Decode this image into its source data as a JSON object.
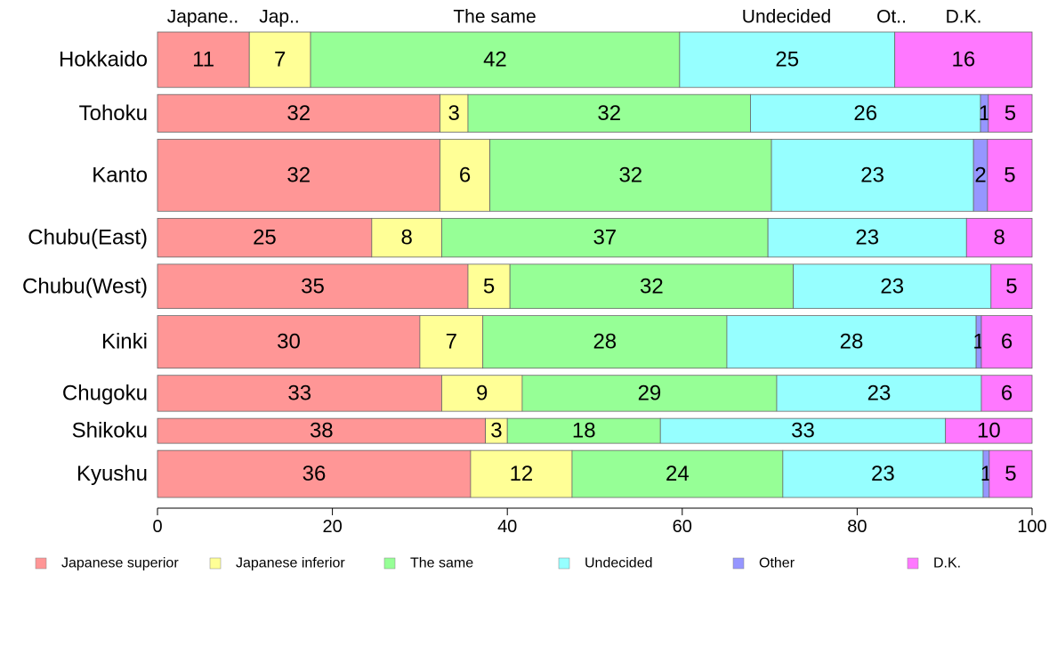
{
  "chart_data": {
    "type": "bar",
    "orientation": "horizontal",
    "stacked": true,
    "title": "",
    "xlabel": "",
    "ylabel": "",
    "xlim": [
      0,
      100
    ],
    "xticks": [
      0,
      20,
      40,
      60,
      80,
      100
    ],
    "grid": false,
    "legend": "bottom",
    "categories": [
      "Hokkaido",
      "Tohoku",
      "Kanto",
      "Chubu(East)",
      "Chubu(West)",
      "Kinki",
      "Chugoku",
      "Shikoku",
      "Kyushu"
    ],
    "category_weights": [
      1.0,
      0.68,
      1.3,
      0.7,
      0.8,
      0.95,
      0.65,
      0.45,
      0.85
    ],
    "top_labels": [
      "Japane..",
      "Jap..",
      "The same",
      "Undecided",
      "Ot..",
      "D.K."
    ],
    "series": [
      {
        "name": "Japanese superior",
        "color": "#ff9696",
        "values": [
          10.5,
          32.3,
          32.3,
          24.5,
          35.5,
          30.0,
          32.5,
          37.5,
          35.8
        ],
        "labels": [
          "11",
          "32",
          "32",
          "25",
          "35",
          "30",
          "33",
          "38",
          "36"
        ]
      },
      {
        "name": "Japanese inferior",
        "color": "#ffff96",
        "values": [
          7.0,
          3.2,
          5.7,
          8.0,
          4.8,
          7.2,
          9.2,
          2.5,
          11.6
        ],
        "labels": [
          "7",
          "3",
          "6",
          "8",
          "5",
          "7",
          "9",
          "3",
          "12"
        ]
      },
      {
        "name": "The same",
        "color": "#96ff96",
        "values": [
          42.2,
          32.3,
          32.2,
          37.3,
          32.4,
          27.9,
          29.1,
          17.5,
          24.1
        ],
        "labels": [
          "42",
          "32",
          "32",
          "37",
          "32",
          "28",
          "29",
          "18",
          "24"
        ]
      },
      {
        "name": "Undecided",
        "color": "#96ffff",
        "values": [
          24.6,
          26.3,
          23.1,
          22.7,
          22.6,
          28.5,
          23.4,
          32.6,
          22.9
        ],
        "labels": [
          "25",
          "26",
          "23",
          "23",
          "23",
          "28",
          "23",
          "33",
          "23"
        ]
      },
      {
        "name": "Other",
        "color": "#9696ff",
        "values": [
          0,
          0.9,
          1.6,
          0,
          0,
          0.6,
          0,
          0,
          0.7
        ],
        "labels": [
          "",
          "1",
          "2",
          "",
          "",
          "1",
          "",
          "",
          "1"
        ]
      },
      {
        "name": "D.K.",
        "color": "#ff78ff",
        "values": [
          15.7,
          5.0,
          5.1,
          7.5,
          4.7,
          5.8,
          5.8,
          9.9,
          4.9
        ],
        "labels": [
          "16",
          "5",
          "5",
          "8",
          "5",
          "6",
          "6",
          "10",
          "5"
        ]
      }
    ]
  }
}
